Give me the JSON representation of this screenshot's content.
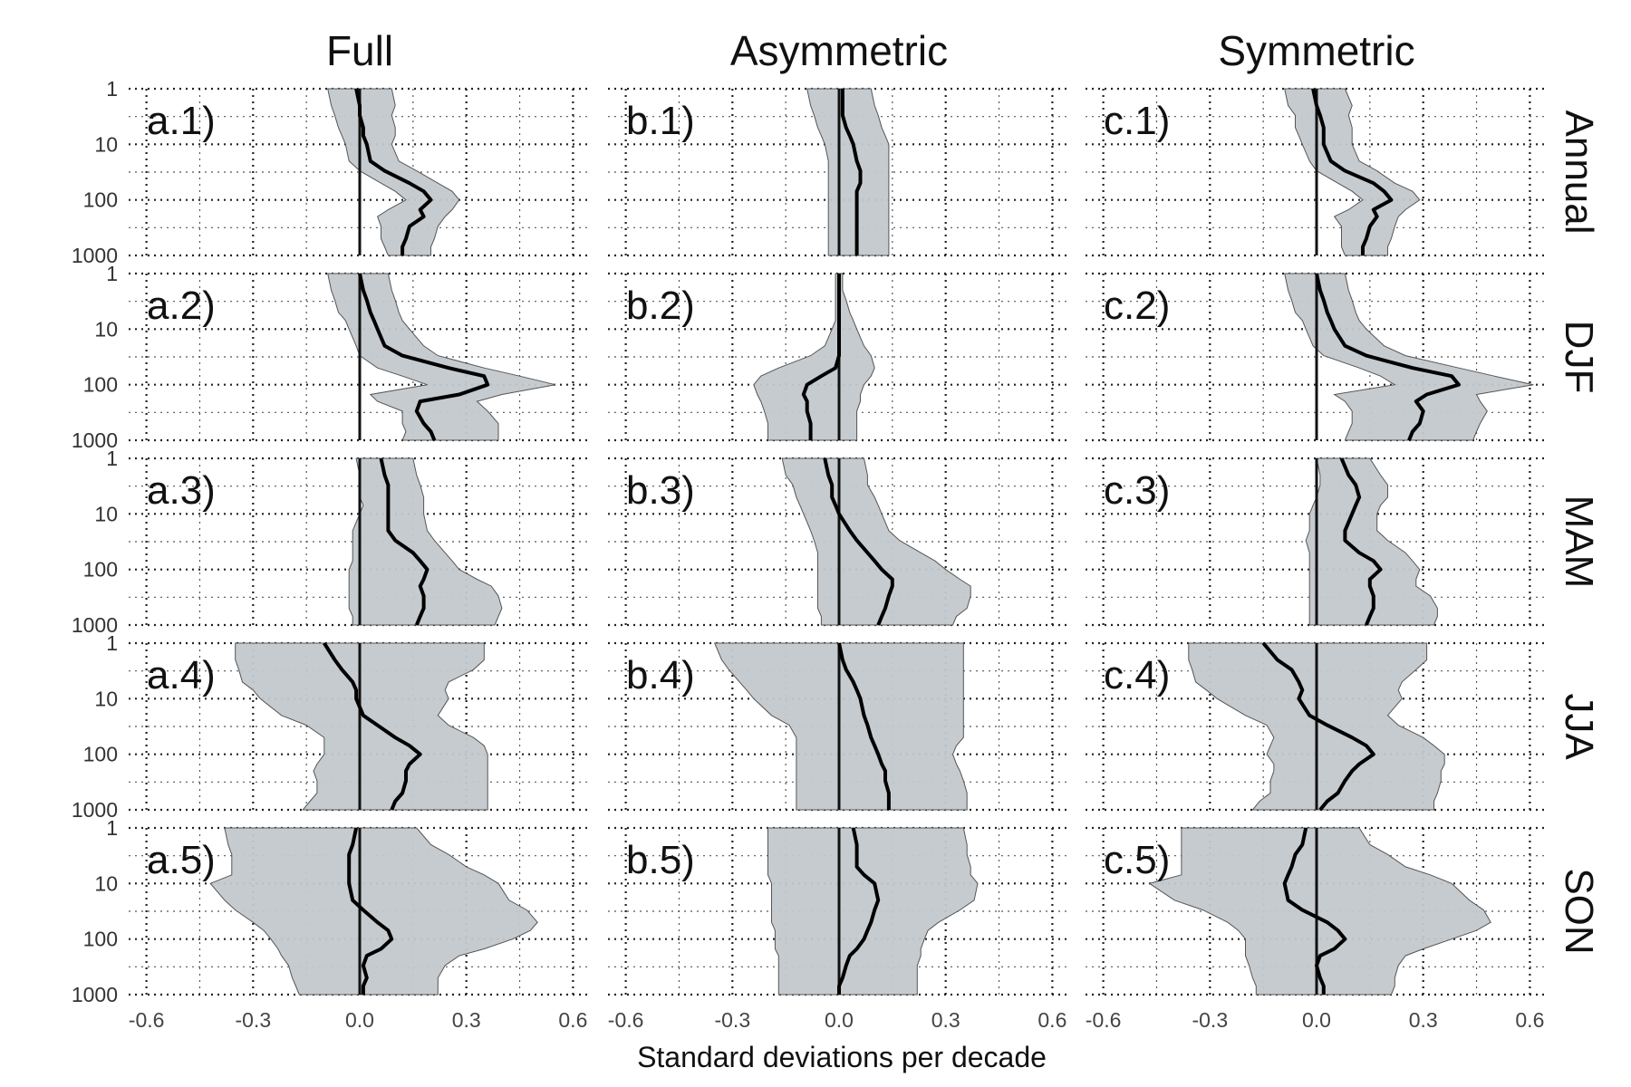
{
  "chart_data": {
    "type": "line",
    "xlabel": "Standard deviations per decade",
    "ylabel": "",
    "xlim": [
      -0.65,
      0.65
    ],
    "ylim": [
      1,
      1000
    ],
    "y_scale": "log",
    "y_reversed": true,
    "x_ticks": [
      -0.6,
      -0.3,
      0.0,
      0.3,
      0.6
    ],
    "x_tick_labels": [
      "-0.6",
      "-0.3",
      "0.0",
      "0.3",
      "0.6"
    ],
    "y_ticks": [
      1,
      10,
      100,
      1000
    ],
    "y_tick_labels": [
      "1",
      "10",
      "100",
      "1000"
    ],
    "grid": true,
    "band_color": "#c3c8cc",
    "line_color": "#000000",
    "columns": [
      "Full",
      "Asymmetric",
      "Symmetric"
    ],
    "rows": [
      "Annual",
      "DJF",
      "MAM",
      "JJA",
      "SON"
    ],
    "levels": [
      1,
      2,
      3,
      5,
      7,
      10,
      20,
      30,
      50,
      70,
      100,
      150,
      200,
      300,
      500,
      700,
      1000
    ],
    "panels": [
      {
        "label": "a.1)",
        "column": "Full",
        "row": "Annual",
        "mean": [
          -0.01,
          0.0,
          0.0,
          0.01,
          0.01,
          0.02,
          0.03,
          0.07,
          0.14,
          0.18,
          0.2,
          0.17,
          0.18,
          0.14,
          0.13,
          0.12,
          0.12
        ],
        "lower": [
          -0.09,
          -0.08,
          -0.07,
          -0.06,
          -0.05,
          -0.04,
          -0.03,
          0.0,
          0.06,
          0.1,
          0.13,
          0.08,
          0.05,
          0.06,
          0.06,
          0.07,
          0.08
        ],
        "upper": [
          0.09,
          0.1,
          0.09,
          0.1,
          0.1,
          0.09,
          0.11,
          0.16,
          0.22,
          0.26,
          0.28,
          0.26,
          0.24,
          0.22,
          0.21,
          0.2,
          0.2
        ]
      },
      {
        "label": "b.1)",
        "column": "Asymmetric",
        "row": "Annual",
        "mean": [
          0.01,
          0.01,
          0.01,
          0.02,
          0.03,
          0.04,
          0.05,
          0.06,
          0.06,
          0.05,
          0.05,
          0.05,
          0.05,
          0.05,
          0.05,
          0.05,
          0.05
        ],
        "lower": [
          -0.09,
          -0.08,
          -0.07,
          -0.06,
          -0.05,
          -0.04,
          -0.03,
          -0.03,
          -0.03,
          -0.03,
          -0.03,
          -0.03,
          -0.03,
          -0.03,
          -0.03,
          -0.03,
          -0.03
        ],
        "upper": [
          0.09,
          0.1,
          0.11,
          0.12,
          0.13,
          0.14,
          0.14,
          0.14,
          0.14,
          0.14,
          0.14,
          0.14,
          0.14,
          0.14,
          0.14,
          0.14,
          0.14
        ]
      },
      {
        "label": "c.1)",
        "column": "Symmetric",
        "row": "Annual",
        "mean": [
          -0.01,
          0.0,
          0.01,
          0.02,
          0.02,
          0.02,
          0.04,
          0.08,
          0.16,
          0.19,
          0.21,
          0.16,
          0.17,
          0.15,
          0.14,
          0.13,
          0.13
        ],
        "lower": [
          -0.09,
          -0.08,
          -0.06,
          -0.06,
          -0.05,
          -0.04,
          -0.02,
          0.0,
          0.06,
          0.1,
          0.13,
          0.09,
          0.05,
          0.07,
          0.07,
          0.07,
          0.08
        ],
        "upper": [
          0.08,
          0.1,
          0.09,
          0.1,
          0.1,
          0.1,
          0.12,
          0.17,
          0.22,
          0.27,
          0.29,
          0.25,
          0.23,
          0.22,
          0.21,
          0.2,
          0.2
        ]
      },
      {
        "label": "a.2)",
        "column": "Full",
        "row": "DJF",
        "mean": [
          0.0,
          0.01,
          0.02,
          0.03,
          0.04,
          0.05,
          0.07,
          0.12,
          0.25,
          0.35,
          0.36,
          0.28,
          0.17,
          0.16,
          0.18,
          0.2,
          0.21
        ],
        "lower": [
          -0.09,
          -0.08,
          -0.07,
          -0.06,
          -0.04,
          -0.03,
          -0.01,
          0.0,
          0.05,
          0.12,
          0.19,
          0.03,
          0.05,
          0.12,
          0.12,
          0.13,
          0.12
        ],
        "upper": [
          0.08,
          0.09,
          0.1,
          0.11,
          0.12,
          0.14,
          0.18,
          0.22,
          0.35,
          0.45,
          0.55,
          0.4,
          0.33,
          0.36,
          0.39,
          0.39,
          0.39
        ]
      },
      {
        "label": "b.2)",
        "column": "Asymmetric",
        "row": "DJF",
        "mean": [
          0.0,
          0.0,
          0.0,
          0.0,
          0.0,
          0.0,
          0.0,
          0.0,
          -0.01,
          -0.05,
          -0.09,
          -0.1,
          -0.09,
          -0.09,
          -0.08,
          -0.08,
          -0.08
        ],
        "lower": [
          -0.01,
          -0.01,
          -0.01,
          -0.01,
          -0.01,
          -0.02,
          -0.04,
          -0.08,
          -0.17,
          -0.22,
          -0.24,
          -0.23,
          -0.22,
          -0.21,
          -0.2,
          -0.2,
          -0.2
        ],
        "upper": [
          0.01,
          0.01,
          0.02,
          0.03,
          0.04,
          0.05,
          0.07,
          0.09,
          0.1,
          0.09,
          0.07,
          0.06,
          0.06,
          0.05,
          0.05,
          0.05,
          0.05
        ]
      },
      {
        "label": "c.2)",
        "column": "Symmetric",
        "row": "DJF",
        "mean": [
          0.0,
          0.01,
          0.02,
          0.03,
          0.04,
          0.05,
          0.08,
          0.14,
          0.27,
          0.38,
          0.4,
          0.31,
          0.28,
          0.3,
          0.29,
          0.27,
          0.26
        ],
        "lower": [
          -0.09,
          -0.08,
          -0.07,
          -0.06,
          -0.04,
          -0.03,
          -0.01,
          0.02,
          0.12,
          0.18,
          0.22,
          0.05,
          0.08,
          0.1,
          0.1,
          0.09,
          0.08
        ],
        "upper": [
          0.08,
          0.09,
          0.1,
          0.11,
          0.12,
          0.14,
          0.19,
          0.25,
          0.4,
          0.5,
          0.61,
          0.45,
          0.46,
          0.48,
          0.46,
          0.45,
          0.44
        ]
      },
      {
        "label": "a.3)",
        "column": "Full",
        "row": "MAM",
        "mean": [
          0.06,
          0.07,
          0.08,
          0.08,
          0.08,
          0.08,
          0.08,
          0.1,
          0.15,
          0.17,
          0.19,
          0.18,
          0.17,
          0.18,
          0.18,
          0.17,
          0.16
        ],
        "lower": [
          -0.01,
          0.0,
          0.0,
          0.0,
          0.01,
          0.0,
          -0.02,
          -0.02,
          -0.02,
          -0.02,
          -0.03,
          -0.03,
          -0.03,
          -0.03,
          -0.03,
          -0.02,
          -0.02
        ],
        "upper": [
          0.15,
          0.16,
          0.17,
          0.18,
          0.18,
          0.18,
          0.19,
          0.21,
          0.24,
          0.26,
          0.28,
          0.33,
          0.37,
          0.39,
          0.4,
          0.39,
          0.38
        ]
      },
      {
        "label": "b.3)",
        "column": "Asymmetric",
        "row": "MAM",
        "mean": [
          -0.04,
          -0.03,
          -0.02,
          -0.02,
          -0.01,
          0.0,
          0.03,
          0.05,
          0.08,
          0.1,
          0.12,
          0.15,
          0.15,
          0.14,
          0.13,
          0.12,
          0.11
        ],
        "lower": [
          -0.16,
          -0.15,
          -0.13,
          -0.12,
          -0.11,
          -0.1,
          -0.08,
          -0.07,
          -0.06,
          -0.06,
          -0.06,
          -0.06,
          -0.06,
          -0.06,
          -0.06,
          -0.05,
          -0.05
        ],
        "upper": [
          0.07,
          0.08,
          0.08,
          0.1,
          0.11,
          0.12,
          0.14,
          0.17,
          0.23,
          0.27,
          0.3,
          0.34,
          0.37,
          0.37,
          0.36,
          0.33,
          0.32
        ]
      },
      {
        "label": "c.3)",
        "column": "Symmetric",
        "row": "MAM",
        "mean": [
          0.07,
          0.09,
          0.11,
          0.12,
          0.11,
          0.1,
          0.08,
          0.08,
          0.12,
          0.16,
          0.18,
          0.15,
          0.15,
          0.16,
          0.16,
          0.15,
          0.14
        ],
        "lower": [
          0.0,
          0.01,
          0.01,
          0.0,
          -0.01,
          -0.02,
          -0.02,
          -0.03,
          -0.02,
          -0.02,
          -0.02,
          -0.02,
          -0.02,
          -0.02,
          -0.02,
          -0.02,
          -0.02
        ],
        "upper": [
          0.15,
          0.18,
          0.2,
          0.2,
          0.18,
          0.17,
          0.17,
          0.2,
          0.25,
          0.27,
          0.29,
          0.28,
          0.28,
          0.32,
          0.34,
          0.34,
          0.33
        ]
      },
      {
        "label": "a.4)",
        "column": "Full",
        "row": "JJA",
        "mean": [
          -0.1,
          -0.07,
          -0.05,
          -0.02,
          -0.01,
          -0.01,
          0.01,
          0.05,
          0.1,
          0.14,
          0.17,
          0.14,
          0.13,
          0.13,
          0.12,
          0.1,
          0.09
        ],
        "lower": [
          -0.35,
          -0.35,
          -0.34,
          -0.33,
          -0.3,
          -0.28,
          -0.22,
          -0.15,
          -0.1,
          -0.1,
          -0.1,
          -0.12,
          -0.13,
          -0.12,
          -0.12,
          -0.14,
          -0.16
        ],
        "upper": [
          0.35,
          0.35,
          0.32,
          0.25,
          0.24,
          0.25,
          0.22,
          0.25,
          0.32,
          0.35,
          0.36,
          0.36,
          0.36,
          0.36,
          0.36,
          0.36,
          0.36
        ]
      },
      {
        "label": "b.4)",
        "column": "Asymmetric",
        "row": "JJA",
        "mean": [
          0.0,
          0.01,
          0.02,
          0.04,
          0.05,
          0.06,
          0.07,
          0.08,
          0.09,
          0.1,
          0.11,
          0.12,
          0.13,
          0.13,
          0.14,
          0.14,
          0.14
        ],
        "lower": [
          -0.35,
          -0.33,
          -0.31,
          -0.28,
          -0.26,
          -0.24,
          -0.19,
          -0.14,
          -0.12,
          -0.12,
          -0.12,
          -0.12,
          -0.12,
          -0.12,
          -0.12,
          -0.12,
          -0.12
        ],
        "upper": [
          0.35,
          0.35,
          0.35,
          0.35,
          0.35,
          0.35,
          0.35,
          0.35,
          0.35,
          0.33,
          0.32,
          0.33,
          0.34,
          0.35,
          0.36,
          0.36,
          0.36
        ]
      },
      {
        "label": "c.4)",
        "column": "Symmetric",
        "row": "JJA",
        "mean": [
          -0.15,
          -0.11,
          -0.07,
          -0.05,
          -0.04,
          -0.05,
          -0.02,
          0.03,
          0.1,
          0.14,
          0.16,
          0.12,
          0.1,
          0.08,
          0.06,
          0.03,
          0.01
        ],
        "lower": [
          -0.36,
          -0.36,
          -0.35,
          -0.34,
          -0.31,
          -0.28,
          -0.2,
          -0.14,
          -0.12,
          -0.13,
          -0.14,
          -0.12,
          -0.12,
          -0.13,
          -0.13,
          -0.16,
          -0.18
        ],
        "upper": [
          0.31,
          0.31,
          0.28,
          0.24,
          0.23,
          0.24,
          0.2,
          0.23,
          0.3,
          0.33,
          0.36,
          0.36,
          0.35,
          0.35,
          0.34,
          0.33,
          0.33
        ]
      },
      {
        "label": "a.5)",
        "column": "Full",
        "row": "SON",
        "mean": [
          -0.01,
          -0.02,
          -0.03,
          -0.03,
          -0.03,
          -0.03,
          -0.02,
          0.01,
          0.05,
          0.08,
          0.09,
          0.06,
          0.02,
          0.01,
          0.02,
          0.01,
          0.01
        ],
        "lower": [
          -0.38,
          -0.37,
          -0.36,
          -0.36,
          -0.36,
          -0.42,
          -0.38,
          -0.35,
          -0.3,
          -0.27,
          -0.25,
          -0.23,
          -0.22,
          -0.2,
          -0.19,
          -0.18,
          -0.17
        ],
        "upper": [
          0.16,
          0.2,
          0.25,
          0.3,
          0.35,
          0.39,
          0.42,
          0.47,
          0.5,
          0.48,
          0.43,
          0.35,
          0.28,
          0.24,
          0.22,
          0.22,
          0.22
        ]
      },
      {
        "label": "b.5)",
        "column": "Asymmetric",
        "row": "SON",
        "mean": [
          0.04,
          0.05,
          0.05,
          0.05,
          0.07,
          0.1,
          0.11,
          0.1,
          0.09,
          0.08,
          0.07,
          0.05,
          0.03,
          0.02,
          0.01,
          0.0,
          0.0
        ],
        "lower": [
          -0.2,
          -0.2,
          -0.2,
          -0.2,
          -0.2,
          -0.19,
          -0.19,
          -0.19,
          -0.19,
          -0.18,
          -0.18,
          -0.18,
          -0.17,
          -0.17,
          -0.17,
          -0.17,
          -0.17
        ],
        "upper": [
          0.35,
          0.36,
          0.36,
          0.37,
          0.37,
          0.39,
          0.38,
          0.34,
          0.28,
          0.25,
          0.24,
          0.23,
          0.23,
          0.22,
          0.22,
          0.22,
          0.22
        ]
      },
      {
        "label": "c.5)",
        "column": "Symmetric",
        "row": "SON",
        "mean": [
          -0.03,
          -0.04,
          -0.06,
          -0.07,
          -0.08,
          -0.09,
          -0.08,
          -0.04,
          0.03,
          0.06,
          0.08,
          0.05,
          0.01,
          0.0,
          0.01,
          0.02,
          0.02
        ],
        "lower": [
          -0.38,
          -0.38,
          -0.38,
          -0.38,
          -0.38,
          -0.47,
          -0.4,
          -0.32,
          -0.25,
          -0.22,
          -0.2,
          -0.2,
          -0.2,
          -0.19,
          -0.18,
          -0.17,
          -0.17
        ],
        "upper": [
          0.12,
          0.15,
          0.2,
          0.25,
          0.32,
          0.38,
          0.43,
          0.47,
          0.49,
          0.45,
          0.38,
          0.3,
          0.25,
          0.23,
          0.22,
          0.22,
          0.21
        ]
      }
    ]
  }
}
